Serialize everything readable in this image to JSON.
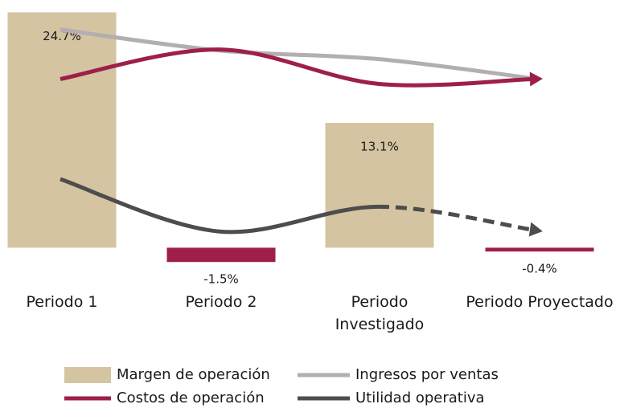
{
  "chart_data": {
    "type": "bar",
    "categories": [
      "Periodo 1",
      "Periodo 2",
      "Periodo Investigado",
      "Periodo Proyectado"
    ],
    "ylim": [
      -3,
      26
    ],
    "series": [
      {
        "name": "Margen de operación",
        "type": "bar",
        "values": [
          24.7,
          -1.5,
          13.1,
          -0.4
        ],
        "value_labels": [
          "24.7%",
          "-1.5%",
          "13.1%",
          "-0.4%"
        ],
        "colors": [
          "#d5c4a1",
          "#9e1f48",
          "#d5c4a1",
          "#9e1f48"
        ],
        "color": "#d5c4a1"
      },
      {
        "name": "Ingresos por ventas",
        "type": "line",
        "color": "#b3aeb0",
        "values": [
          22.9,
          20.7,
          19.8,
          17.7
        ],
        "arrow": false
      },
      {
        "name": "Costos de operación",
        "type": "line",
        "color": "#9e1f48",
        "values": [
          17.7,
          20.8,
          17.2,
          17.7
        ],
        "arrow": true
      },
      {
        "name": "Utilidad operativa",
        "type": "line",
        "color": "#4d4d4d",
        "values": [
          7.2,
          1.7,
          4.3,
          1.9
        ],
        "arrow": true,
        "dashed_last_segment": true
      }
    ]
  }
}
